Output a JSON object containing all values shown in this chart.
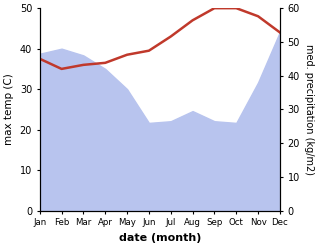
{
  "months": [
    "Jan",
    "Feb",
    "Mar",
    "Apr",
    "May",
    "Jun",
    "Jul",
    "Aug",
    "Sep",
    "Oct",
    "Nov",
    "Dec"
  ],
  "max_temp": [
    37.5,
    35.0,
    36.0,
    36.5,
    38.5,
    39.5,
    43.0,
    47.0,
    50.0,
    50.0,
    48.0,
    44.0
  ],
  "precipitation": [
    46.5,
    48.0,
    46.0,
    42.0,
    36.0,
    26.0,
    26.5,
    29.5,
    26.5,
    26.0,
    38.0,
    53.0
  ],
  "temp_color": "#c0392b",
  "precip_fill_color": "#b8c4ee",
  "temp_ylim": [
    0,
    50
  ],
  "precip_ylim": [
    0,
    60
  ],
  "xlabel": "date (month)",
  "ylabel_left": "max temp (C)",
  "ylabel_right": "med. precipitation (kg/m2)"
}
